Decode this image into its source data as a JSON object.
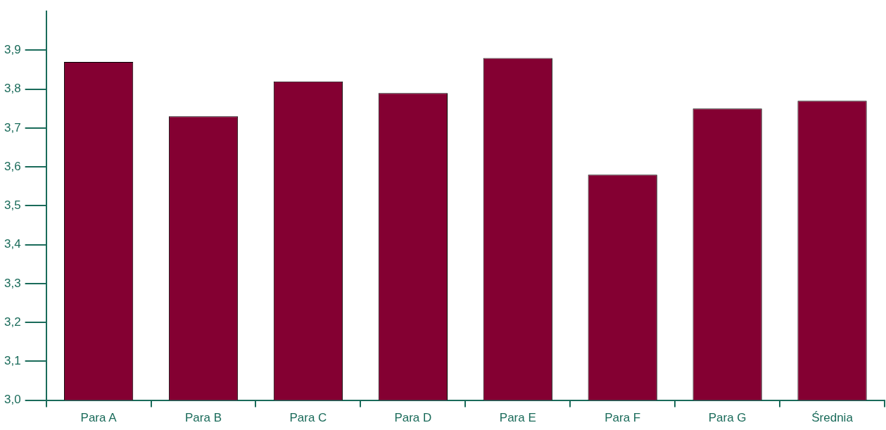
{
  "chart_data": {
    "type": "bar",
    "categories": [
      "Para A",
      "Para B",
      "Para C",
      "Para D",
      "Para E",
      "Para F",
      "Para G",
      "Średnia"
    ],
    "values": [
      3.87,
      3.73,
      3.82,
      3.79,
      3.88,
      3.58,
      3.75,
      3.77
    ],
    "color": "#840032",
    "ylim": [
      3,
      4
    ],
    "yticks": [
      {
        "value": 3,
        "label": "3,0"
      },
      {
        "value": 3.1,
        "label": "3,1"
      },
      {
        "value": 3.2,
        "label": "3,2"
      },
      {
        "value": 3.3,
        "label": "3,3"
      },
      {
        "value": 3.4,
        "label": "3,4"
      },
      {
        "value": 3.5,
        "label": "3,5"
      },
      {
        "value": 3.6,
        "label": "3,6"
      },
      {
        "value": 3.7,
        "label": "3,7"
      },
      {
        "value": 3.8,
        "label": "3,8"
      },
      {
        "value": 3.9,
        "label": "3,9"
      }
    ],
    "grid": false,
    "legend": false
  }
}
